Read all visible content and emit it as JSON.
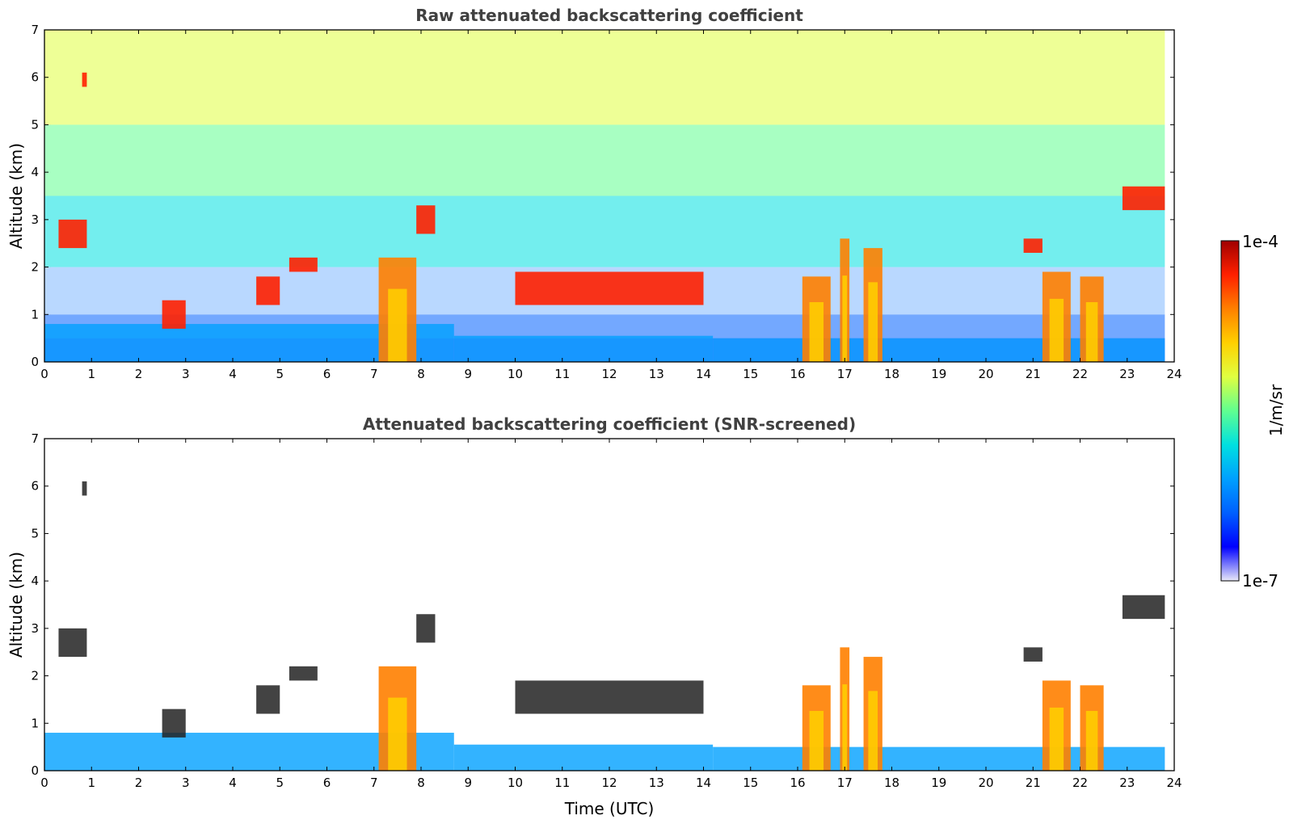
{
  "figure": {
    "colormap": [
      "#e8e8f8",
      "#0000ff",
      "#0060ff",
      "#00a0ff",
      "#00e0e0",
      "#60ff90",
      "#e0ff40",
      "#ffd000",
      "#ff8000",
      "#ff2000",
      "#a00000"
    ],
    "colorbar": {
      "label": "1/m/sr",
      "max_label": "1e-4",
      "min_label": "1e-7"
    }
  },
  "chart_data": [
    {
      "type": "heatmap",
      "title": "Raw attenuated backscattering coefficient",
      "xlabel": "",
      "ylabel": "Altitude (km)",
      "xlim": [
        0,
        24
      ],
      "ylim": [
        0,
        7
      ],
      "xticks": [
        "0",
        "1",
        "2",
        "3",
        "4",
        "5",
        "6",
        "7",
        "8",
        "9",
        "10",
        "11",
        "12",
        "13",
        "14",
        "15",
        "16",
        "17",
        "18",
        "19",
        "20",
        "21",
        "22",
        "23",
        "24"
      ],
      "yticks": [
        "0",
        "1",
        "2",
        "3",
        "4",
        "5",
        "6",
        "7"
      ],
      "screened": false,
      "data_end_time": 23.8,
      "features": [
        {
          "kind": "aerosol_layer",
          "x": [
            0,
            8.7
          ],
          "alt": [
            0,
            0.8
          ]
        },
        {
          "kind": "aerosol_layer",
          "x": [
            8.7,
            14.2
          ],
          "alt": [
            0,
            0.55
          ]
        },
        {
          "kind": "aerosol_layer",
          "x": [
            14.2,
            23.8
          ],
          "alt": [
            0,
            0.5
          ]
        },
        {
          "kind": "cloud",
          "x": [
            0.3,
            0.9
          ],
          "alt": [
            2.4,
            3.0
          ]
        },
        {
          "kind": "cloud",
          "x": [
            0.8,
            0.9
          ],
          "alt": [
            5.8,
            6.1
          ]
        },
        {
          "kind": "cloud",
          "x": [
            2.5,
            3.0
          ],
          "alt": [
            0.7,
            1.3
          ]
        },
        {
          "kind": "cloud",
          "x": [
            4.5,
            5.0
          ],
          "alt": [
            1.2,
            1.8
          ]
        },
        {
          "kind": "cloud",
          "x": [
            5.2,
            5.8
          ],
          "alt": [
            1.9,
            2.2
          ]
        },
        {
          "kind": "precip_column",
          "x": [
            7.1,
            7.9
          ],
          "alt": [
            0,
            2.2
          ]
        },
        {
          "kind": "cloud",
          "x": [
            7.9,
            8.3
          ],
          "alt": [
            2.7,
            3.3
          ]
        },
        {
          "kind": "cloud",
          "x": [
            10.0,
            14.0
          ],
          "alt": [
            1.2,
            1.9
          ]
        },
        {
          "kind": "precip_column",
          "x": [
            16.1,
            16.7
          ],
          "alt": [
            0,
            1.8
          ]
        },
        {
          "kind": "precip_column",
          "x": [
            16.9,
            17.1
          ],
          "alt": [
            0,
            2.6
          ]
        },
        {
          "kind": "precip_column",
          "x": [
            17.4,
            17.8
          ],
          "alt": [
            0,
            2.4
          ]
        },
        {
          "kind": "cloud",
          "x": [
            20.8,
            21.2
          ],
          "alt": [
            2.3,
            2.6
          ]
        },
        {
          "kind": "precip_column",
          "x": [
            21.2,
            21.8
          ],
          "alt": [
            0,
            1.9
          ]
        },
        {
          "kind": "precip_column",
          "x": [
            22.0,
            22.5
          ],
          "alt": [
            0,
            1.8
          ]
        },
        {
          "kind": "cloud",
          "x": [
            22.9,
            23.8
          ],
          "alt": [
            3.2,
            3.7
          ]
        }
      ]
    },
    {
      "type": "heatmap",
      "title": "Attenuated backscattering coefficient (SNR-screened)",
      "xlabel": "Time (UTC)",
      "ylabel": "Altitude (km)",
      "xlim": [
        0,
        24
      ],
      "ylim": [
        0,
        7
      ],
      "xticks": [
        "0",
        "1",
        "2",
        "3",
        "4",
        "5",
        "6",
        "7",
        "8",
        "9",
        "10",
        "11",
        "12",
        "13",
        "14",
        "15",
        "16",
        "17",
        "18",
        "19",
        "20",
        "21",
        "22",
        "23",
        "24"
      ],
      "yticks": [
        "0",
        "1",
        "2",
        "3",
        "4",
        "5",
        "6",
        "7"
      ],
      "screened": true,
      "data_end_time": 23.8,
      "features": [
        {
          "kind": "aerosol_layer",
          "x": [
            0,
            8.7
          ],
          "alt": [
            0,
            0.8
          ]
        },
        {
          "kind": "aerosol_layer",
          "x": [
            8.7,
            14.2
          ],
          "alt": [
            0,
            0.55
          ]
        },
        {
          "kind": "aerosol_layer",
          "x": [
            14.2,
            23.8
          ],
          "alt": [
            0,
            0.5
          ]
        },
        {
          "kind": "cloud",
          "x": [
            0.3,
            0.9
          ],
          "alt": [
            2.4,
            3.0
          ]
        },
        {
          "kind": "cloud",
          "x": [
            0.8,
            0.9
          ],
          "alt": [
            5.8,
            6.1
          ]
        },
        {
          "kind": "cloud",
          "x": [
            2.5,
            3.0
          ],
          "alt": [
            0.7,
            1.3
          ]
        },
        {
          "kind": "cloud",
          "x": [
            4.5,
            5.0
          ],
          "alt": [
            1.2,
            1.8
          ]
        },
        {
          "kind": "cloud",
          "x": [
            5.2,
            5.8
          ],
          "alt": [
            1.9,
            2.2
          ]
        },
        {
          "kind": "precip_column",
          "x": [
            7.1,
            7.9
          ],
          "alt": [
            0,
            2.2
          ]
        },
        {
          "kind": "cloud",
          "x": [
            7.9,
            8.3
          ],
          "alt": [
            2.7,
            3.3
          ]
        },
        {
          "kind": "cloud",
          "x": [
            10.0,
            14.0
          ],
          "alt": [
            1.2,
            1.9
          ]
        },
        {
          "kind": "precip_column",
          "x": [
            16.1,
            16.7
          ],
          "alt": [
            0,
            1.8
          ]
        },
        {
          "kind": "precip_column",
          "x": [
            16.9,
            17.1
          ],
          "alt": [
            0,
            2.6
          ]
        },
        {
          "kind": "precip_column",
          "x": [
            17.4,
            17.8
          ],
          "alt": [
            0,
            2.4
          ]
        },
        {
          "kind": "cloud",
          "x": [
            20.8,
            21.2
          ],
          "alt": [
            2.3,
            2.6
          ]
        },
        {
          "kind": "precip_column",
          "x": [
            21.2,
            21.8
          ],
          "alt": [
            0,
            1.9
          ]
        },
        {
          "kind": "precip_column",
          "x": [
            22.0,
            22.5
          ],
          "alt": [
            0,
            1.8
          ]
        },
        {
          "kind": "cloud",
          "x": [
            22.9,
            23.8
          ],
          "alt": [
            3.2,
            3.7
          ]
        }
      ]
    }
  ]
}
